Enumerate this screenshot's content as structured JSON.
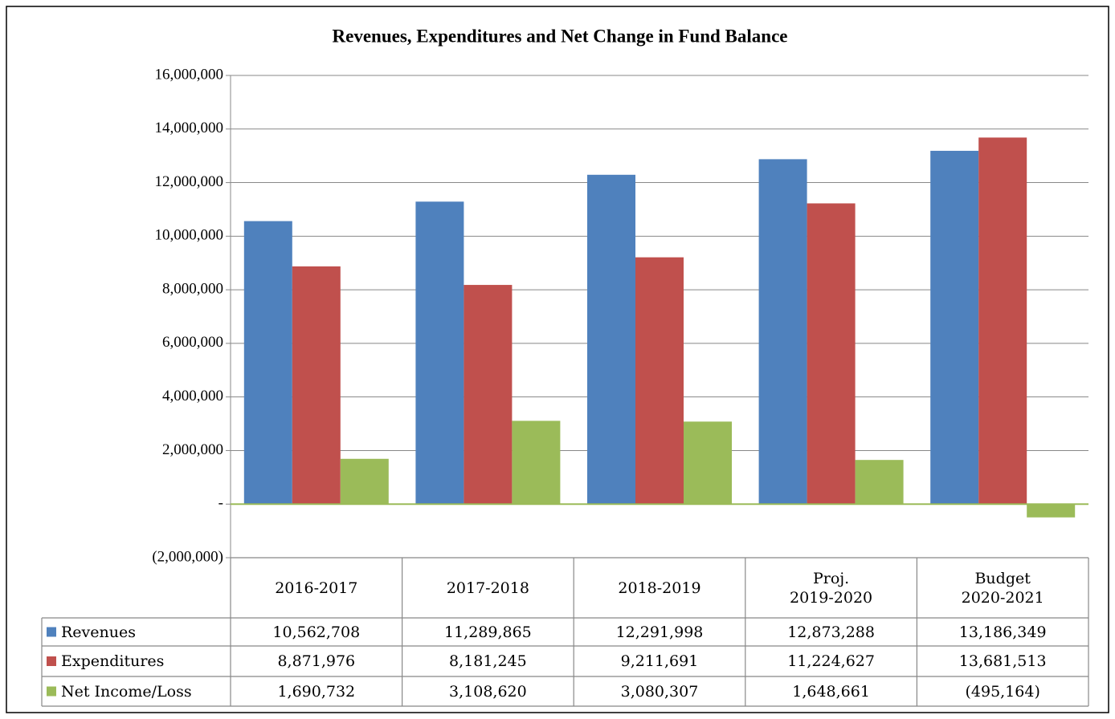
{
  "chart_data": {
    "type": "bar",
    "title": "Revenues, Expenditures and Net Change in Fund Balance",
    "categories": [
      "2016-2017",
      "2017-2018",
      "2018-2019",
      "Proj.\n2019-2020",
      "Budget\n2020-2021"
    ],
    "series": [
      {
        "name": "Revenues",
        "color": "#4f81bd",
        "values": [
          10562708,
          11289865,
          12291998,
          12873288,
          13186349
        ],
        "value_labels": [
          "10,562,708",
          "11,289,865",
          "12,291,998",
          "12,873,288",
          "13,186,349"
        ]
      },
      {
        "name": "Expenditures",
        "color": "#c0504d",
        "values": [
          8871976,
          8181245,
          9211691,
          11224627,
          13681513
        ],
        "value_labels": [
          "8,871,976",
          "8,181,245",
          "9,211,691",
          "11,224,627",
          "13,681,513"
        ]
      },
      {
        "name": "Net Income/Loss",
        "color": "#9bbb59",
        "values": [
          1690732,
          3108620,
          3080307,
          1648661,
          -495164
        ],
        "value_labels": [
          "1,690,732",
          "3,108,620",
          "3,080,307",
          "1,648,661",
          "(495,164)"
        ]
      }
    ],
    "ylim": [
      -2000000,
      16000000
    ],
    "yticks": [
      {
        "value": -2000000,
        "label": "(2,000,000)"
      },
      {
        "value": 0,
        "label": "-"
      },
      {
        "value": 2000000,
        "label": "2,000,000"
      },
      {
        "value": 4000000,
        "label": "4,000,000"
      },
      {
        "value": 6000000,
        "label": "6,000,000"
      },
      {
        "value": 8000000,
        "label": "8,000,000"
      },
      {
        "value": 10000000,
        "label": "10,000,000"
      },
      {
        "value": 12000000,
        "label": "12,000,000"
      },
      {
        "value": 14000000,
        "label": "14,000,000"
      },
      {
        "value": 16000000,
        "label": "16,000,000"
      }
    ],
    "grid": true
  }
}
